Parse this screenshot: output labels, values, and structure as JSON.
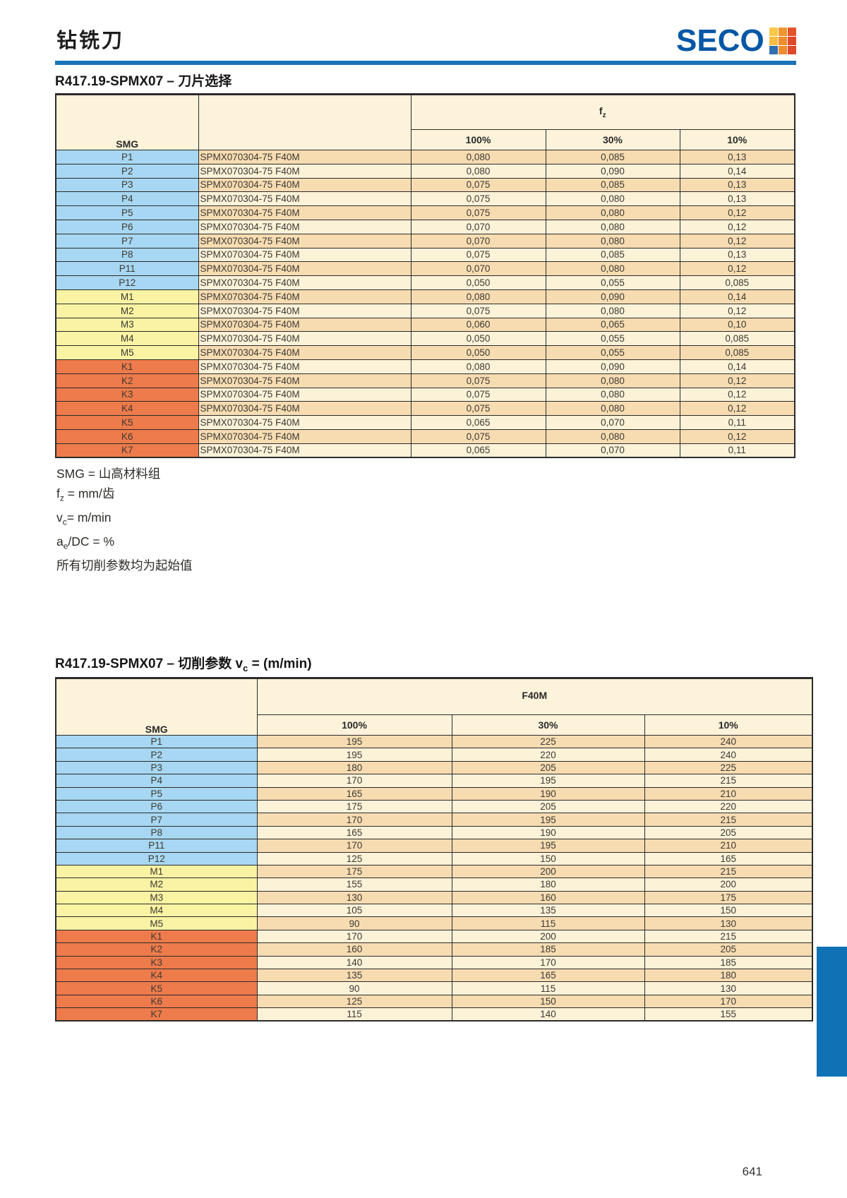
{
  "page": {
    "title": "钻铣刀",
    "brand": "SECO",
    "page_number": "641"
  },
  "colors": {
    "rule_blue": "#1b74b8",
    "logo_blue": "#0057a5",
    "side_tab_blue": "#1171b5",
    "smg_p_blue": "#a7d7f2",
    "smg_m_yellow": "#faf3a3",
    "smg_k_orange": "#ee7b4b",
    "row_dark": "#f7dcb2",
    "row_light": "#fcf2d8",
    "header_cream": "#fcf3da",
    "logo_mark_grid": [
      [
        "#f9c84a",
        "#f0962f",
        "#e4532b"
      ],
      [
        "#f7bd43",
        "#ee8c2e",
        "#df4828"
      ],
      [
        "#2d6fb0",
        "#ee8c2e",
        "#df4828"
      ]
    ]
  },
  "section1": {
    "title": "R417.19-SPMX07 – 刀片选择",
    "table": {
      "smg_header": "SMG",
      "span_header": {
        "pre": "f",
        "sub": "z"
      },
      "percent_cols": [
        "100%",
        "30%",
        "10%"
      ],
      "rows": [
        {
          "smg": "P1",
          "insert": "SPMX070304-75 F40M",
          "values": [
            "0,080",
            "0,085",
            "0,13"
          ]
        },
        {
          "smg": "P2",
          "insert": "SPMX070304-75 F40M",
          "values": [
            "0,080",
            "0,090",
            "0,14"
          ]
        },
        {
          "smg": "P3",
          "insert": "SPMX070304-75 F40M",
          "values": [
            "0,075",
            "0,085",
            "0,13"
          ]
        },
        {
          "smg": "P4",
          "insert": "SPMX070304-75 F40M",
          "values": [
            "0,075",
            "0,080",
            "0,13"
          ]
        },
        {
          "smg": "P5",
          "insert": "SPMX070304-75 F40M",
          "values": [
            "0,075",
            "0,080",
            "0,12"
          ]
        },
        {
          "smg": "P6",
          "insert": "SPMX070304-75 F40M",
          "values": [
            "0,070",
            "0,080",
            "0,12"
          ]
        },
        {
          "smg": "P7",
          "insert": "SPMX070304-75 F40M",
          "values": [
            "0,070",
            "0,080",
            "0,12"
          ]
        },
        {
          "smg": "P8",
          "insert": "SPMX070304-75 F40M",
          "values": [
            "0,075",
            "0,085",
            "0,13"
          ]
        },
        {
          "smg": "P11",
          "insert": "SPMX070304-75 F40M",
          "values": [
            "0,070",
            "0,080",
            "0,12"
          ]
        },
        {
          "smg": "P12",
          "insert": "SPMX070304-75 F40M",
          "values": [
            "0,050",
            "0,055",
            "0,085"
          ]
        },
        {
          "smg": "M1",
          "insert": "SPMX070304-75 F40M",
          "values": [
            "0,080",
            "0,090",
            "0,14"
          ]
        },
        {
          "smg": "M2",
          "insert": "SPMX070304-75 F40M",
          "values": [
            "0,075",
            "0,080",
            "0,12"
          ]
        },
        {
          "smg": "M3",
          "insert": "SPMX070304-75 F40M",
          "values": [
            "0,060",
            "0,065",
            "0,10"
          ]
        },
        {
          "smg": "M4",
          "insert": "SPMX070304-75 F40M",
          "values": [
            "0,050",
            "0,055",
            "0,085"
          ]
        },
        {
          "smg": "M5",
          "insert": "SPMX070304-75 F40M",
          "values": [
            "0,050",
            "0,055",
            "0,085"
          ]
        },
        {
          "smg": "K1",
          "insert": "SPMX070304-75 F40M",
          "values": [
            "0,080",
            "0,090",
            "0,14"
          ]
        },
        {
          "smg": "K2",
          "insert": "SPMX070304-75 F40M",
          "values": [
            "0,075",
            "0,080",
            "0,12"
          ]
        },
        {
          "smg": "K3",
          "insert": "SPMX070304-75 F40M",
          "values": [
            "0,075",
            "0,080",
            "0,12"
          ]
        },
        {
          "smg": "K4",
          "insert": "SPMX070304-75 F40M",
          "values": [
            "0,075",
            "0,080",
            "0,12"
          ]
        },
        {
          "smg": "K5",
          "insert": "SPMX070304-75 F40M",
          "values": [
            "0,065",
            "0,070",
            "0,11"
          ]
        },
        {
          "smg": "K6",
          "insert": "SPMX070304-75 F40M",
          "values": [
            "0,075",
            "0,080",
            "0,12"
          ]
        },
        {
          "smg": "K7",
          "insert": "SPMX070304-75 F40M",
          "values": [
            "0,065",
            "0,070",
            "0,11"
          ]
        }
      ]
    }
  },
  "footnotes": [
    {
      "pre": "SMG = 山高材料组",
      "sub": "",
      "post": ""
    },
    {
      "pre": "f",
      "sub": "z",
      "post": " = mm/齿"
    },
    {
      "pre": "v",
      "sub": "c",
      "post": "= m/min"
    },
    {
      "pre": "a",
      "sub": "e",
      "post": "/DC = %"
    },
    {
      "pre": "所有切削参数均为起始值",
      "sub": "",
      "post": ""
    }
  ],
  "section2": {
    "title": {
      "pre": "R417.19-SPMX07 – 切削参数 v",
      "sub": "c",
      "post": " = (m/min)"
    },
    "table": {
      "smg_header": "SMG",
      "span_header": {
        "pre": "F40M",
        "sub": ""
      },
      "percent_cols": [
        "100%",
        "30%",
        "10%"
      ],
      "rows": [
        {
          "smg": "P1",
          "values": [
            "195",
            "225",
            "240"
          ]
        },
        {
          "smg": "P2",
          "values": [
            "195",
            "220",
            "240"
          ]
        },
        {
          "smg": "P3",
          "values": [
            "180",
            "205",
            "225"
          ]
        },
        {
          "smg": "P4",
          "values": [
            "170",
            "195",
            "215"
          ]
        },
        {
          "smg": "P5",
          "values": [
            "165",
            "190",
            "210"
          ]
        },
        {
          "smg": "P6",
          "values": [
            "175",
            "205",
            "220"
          ]
        },
        {
          "smg": "P7",
          "values": [
            "170",
            "195",
            "215"
          ]
        },
        {
          "smg": "P8",
          "values": [
            "165",
            "190",
            "205"
          ]
        },
        {
          "smg": "P11",
          "values": [
            "170",
            "195",
            "210"
          ]
        },
        {
          "smg": "P12",
          "values": [
            "125",
            "150",
            "165"
          ]
        },
        {
          "smg": "M1",
          "values": [
            "175",
            "200",
            "215"
          ]
        },
        {
          "smg": "M2",
          "values": [
            "155",
            "180",
            "200"
          ]
        },
        {
          "smg": "M3",
          "values": [
            "130",
            "160",
            "175"
          ]
        },
        {
          "smg": "M4",
          "values": [
            "105",
            "135",
            "150"
          ]
        },
        {
          "smg": "M5",
          "values": [
            "90",
            "115",
            "130"
          ]
        },
        {
          "smg": "K1",
          "values": [
            "170",
            "200",
            "215"
          ]
        },
        {
          "smg": "K2",
          "values": [
            "160",
            "185",
            "205"
          ]
        },
        {
          "smg": "K3",
          "values": [
            "140",
            "170",
            "185"
          ]
        },
        {
          "smg": "K4",
          "values": [
            "135",
            "165",
            "180"
          ]
        },
        {
          "smg": "K5",
          "values": [
            "90",
            "115",
            "130"
          ]
        },
        {
          "smg": "K6",
          "values": [
            "125",
            "150",
            "170"
          ]
        },
        {
          "smg": "K7",
          "values": [
            "115",
            "140",
            "155"
          ]
        }
      ]
    }
  }
}
